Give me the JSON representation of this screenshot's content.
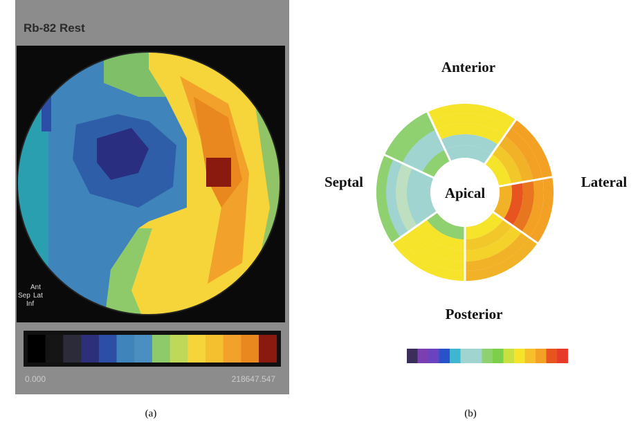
{
  "panel_a": {
    "title": "Rb-82 Rest",
    "orientation": {
      "ant": "Ant",
      "sep": "Sep",
      "lat": "Lat",
      "inf": "Inf"
    },
    "colorbar": {
      "min_label": "0.000",
      "max_label": "218647.547"
    },
    "caption": "(a)"
  },
  "panel_b": {
    "labels": {
      "anterior": "Anterior",
      "septal": "Septal",
      "lateral": "Lateral",
      "posterior": "Posterior",
      "apical": "Apical"
    },
    "caption": "(b)"
  }
}
